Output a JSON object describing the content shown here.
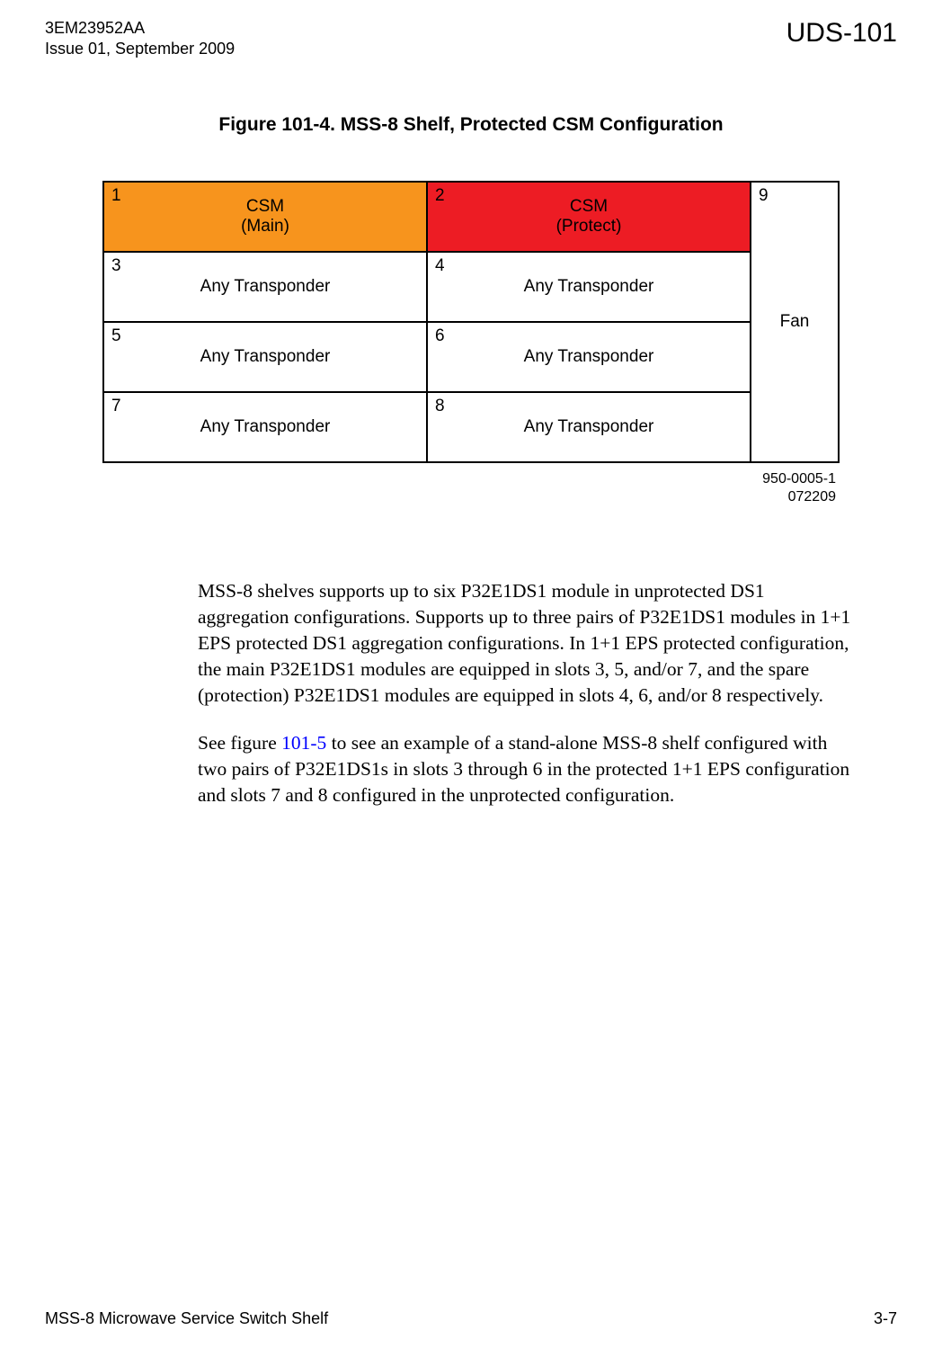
{
  "header": {
    "doc_id": "3EM23952AA",
    "issue": "Issue 01, September 2009",
    "section": "UDS-101"
  },
  "figure": {
    "title": "Figure 101-4. MSS-8 Shelf, Protected CSM Configuration",
    "ref1": "950-0005-1",
    "ref2": "072209",
    "colors": {
      "csm_main_bg": "#f7941d",
      "csm_protect_bg": "#ed1c24",
      "border": "#000000",
      "background": "#ffffff"
    },
    "slots": {
      "s1": {
        "num": "1",
        "label_l1": "CSM",
        "label_l2": "(Main)"
      },
      "s2": {
        "num": "2",
        "label_l1": "CSM",
        "label_l2": "(Protect)"
      },
      "s3": {
        "num": "3",
        "label": "Any Transponder"
      },
      "s4": {
        "num": "4",
        "label": "Any Transponder"
      },
      "s5": {
        "num": "5",
        "label": "Any Transponder"
      },
      "s6": {
        "num": "6",
        "label": "Any Transponder"
      },
      "s7": {
        "num": "7",
        "label": "Any Transponder"
      },
      "s8": {
        "num": "8",
        "label": "Any Transponder"
      },
      "s9": {
        "num": "9",
        "label": "Fan"
      }
    }
  },
  "body": {
    "p1": "MSS-8 shelves supports up to six P32E1DS1 module in unprotected DS1 aggregation configurations. Supports up to three pairs of P32E1DS1 modules in 1+1 EPS protected DS1 aggregation configurations. In 1+1 EPS protected configuration, the main P32E1DS1 modules are equipped in slots 3, 5, and/or 7, and the spare (protection) P32E1DS1 modules are equipped in slots 4, 6, and/or 8 respectively.",
    "p2a": "See figure ",
    "p2link": "101-5",
    "p2b": " to see an example of a stand-alone MSS-8 shelf configured with two pairs of P32E1DS1s in slots 3 through 6 in the protected 1+1 EPS configuration and slots 7 and 8 configured in the unprotected configuration."
  },
  "footer": {
    "left": "MSS-8 Microwave Service Switch Shelf",
    "right": "3-7"
  }
}
